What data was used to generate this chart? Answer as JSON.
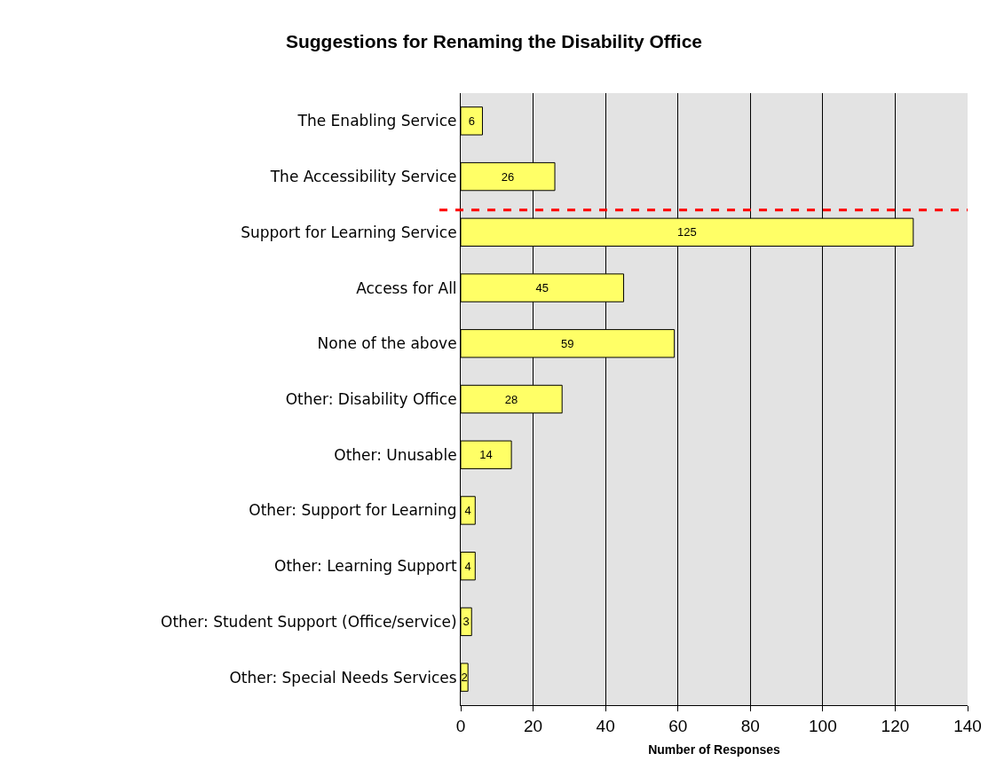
{
  "chart_data": {
    "type": "bar",
    "orientation": "horizontal",
    "title": "Suggestions for Renaming the Disability Office",
    "xlabel": "Number of Responses",
    "categories": [
      "The Enabling Service",
      "The Accessibility Service",
      "Support for Learning Service",
      "Access for All",
      "None of the above",
      "Other: Disability Office",
      "Other: Unusable",
      "Other: Support for Learning",
      "Other: Learning Support",
      "Other: Student Support (Office/service)",
      "Other: Special Needs Services"
    ],
    "values": [
      6,
      26,
      125,
      45,
      59,
      28,
      14,
      4,
      4,
      3,
      2
    ],
    "color": "#ffff66",
    "data_labels": true,
    "xlim": [
      0,
      140
    ],
    "xticks": [
      0,
      20,
      40,
      60,
      80,
      100,
      120,
      140
    ],
    "grid": "x",
    "ref_lines": [
      {
        "axis": "y",
        "value": "Support for Learning Service",
        "color": "#ff0000",
        "line_style": "dashed"
      }
    ]
  }
}
